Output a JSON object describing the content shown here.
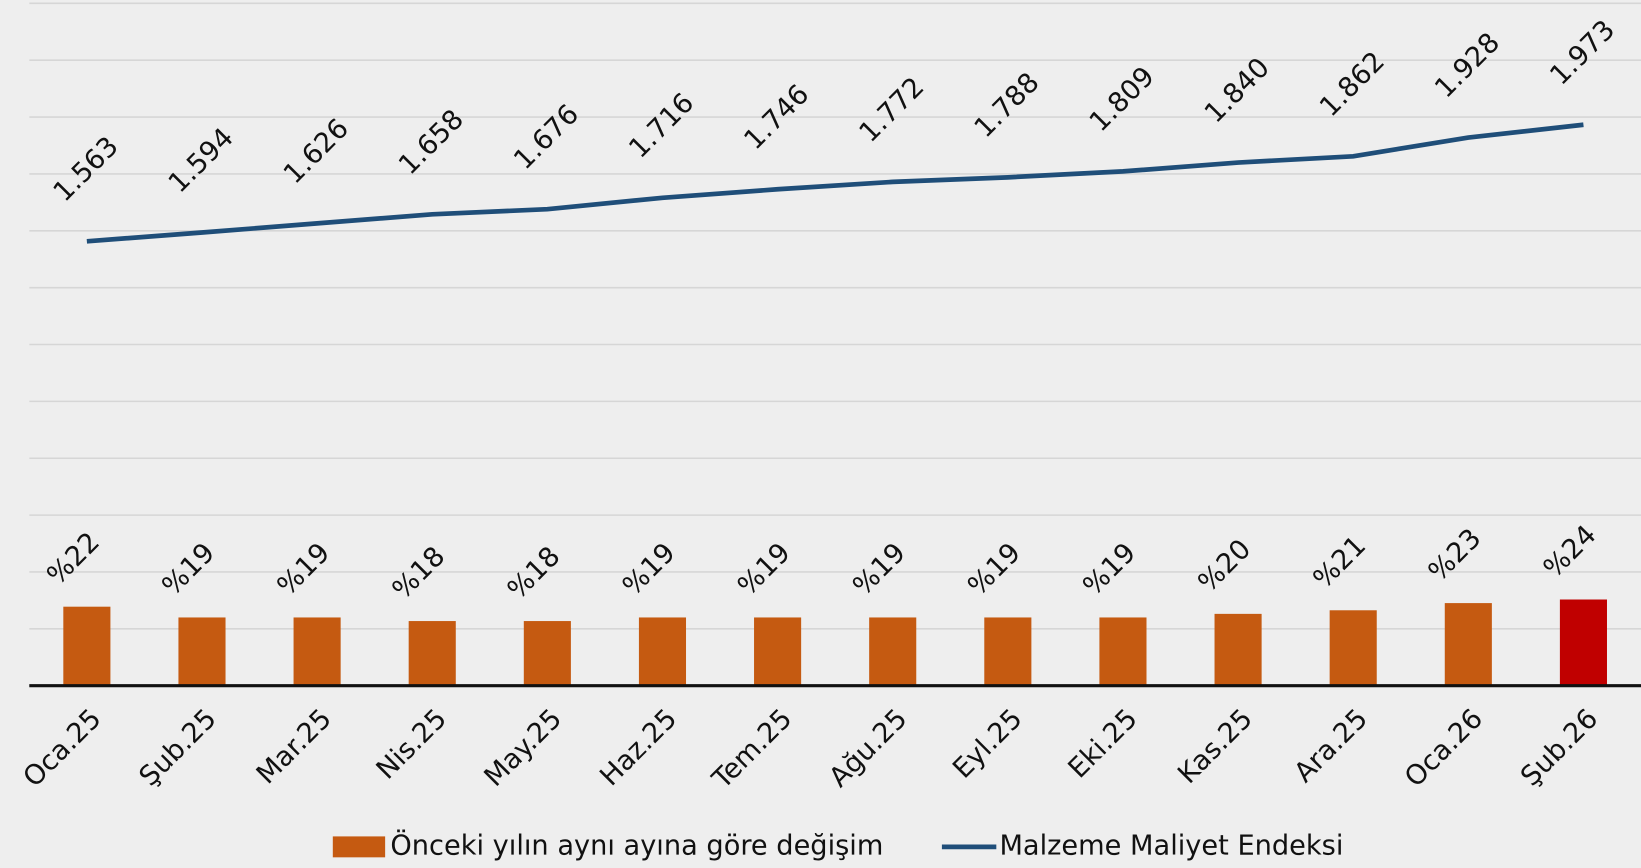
{
  "chart_data": {
    "type": "bar_line",
    "categories": [
      "Oca.25",
      "Şub.25",
      "Mar.25",
      "Nis.25",
      "May.25",
      "Haz.25",
      "Tem.25",
      "Ağu.25",
      "Eyl.25",
      "Eki.25",
      "Kas.25",
      "Ara.25",
      "Oca.26",
      "Şub.26"
    ],
    "series": [
      {
        "name": "Önceki yılın aynı ayına göre değişim",
        "type": "bar",
        "axis": "y2",
        "color": "#c55a11",
        "colors": [
          "#c55a11",
          "#c55a11",
          "#c55a11",
          "#c55a11",
          "#c55a11",
          "#c55a11",
          "#c55a11",
          "#c55a11",
          "#c55a11",
          "#c55a11",
          "#c55a11",
          "#c55a11",
          "#c55a11",
          "#c00000"
        ],
        "values": [
          22,
          19,
          19,
          18,
          18,
          19,
          19,
          19,
          19,
          19,
          20,
          21,
          23,
          24
        ],
        "value_labels": [
          "%22",
          "%19",
          "%19",
          "%18",
          "%18",
          "%19",
          "%19",
          "%19",
          "%19",
          "%19",
          "%20",
          "%21",
          "%23",
          "%24"
        ]
      },
      {
        "name": "Malzeme Maliyet Endeksi",
        "type": "line",
        "color": "#1f4e79",
        "values": [
          1563,
          1594,
          1626,
          1658,
          1676,
          1716,
          1746,
          1772,
          1788,
          1809,
          1840,
          1862,
          1928,
          1973
        ],
        "value_labels": [
          "1.563",
          "1.594",
          "1.626",
          "1.658",
          "1.676",
          "1.716",
          "1.746",
          "1.772",
          "1.788",
          "1.809",
          "1.840",
          "1.862",
          "1.928",
          "1.973"
        ]
      }
    ],
    "ylim": [
      0,
      2400
    ],
    "yticks": [
      0,
      200,
      400,
      600,
      800,
      1000,
      1200,
      1400,
      1600,
      1800,
      2000,
      2200,
      2400
    ],
    "y2lim": [
      0,
      190
    ],
    "grid": true
  }
}
